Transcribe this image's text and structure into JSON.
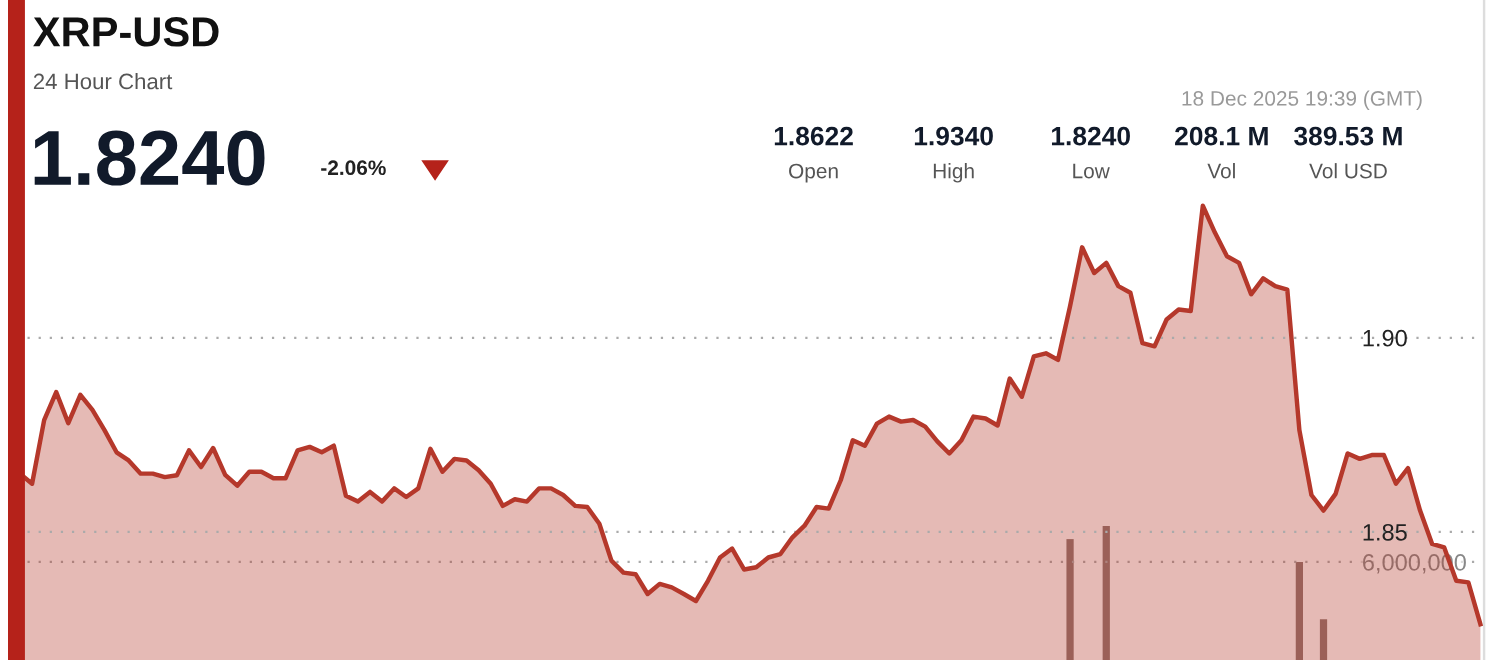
{
  "chart_data": {
    "type": "area",
    "title": "XRP-USD",
    "subtitle": "24 Hour Chart",
    "annotations": [
      "1.8240",
      "-2.06%",
      "18 Dec 2025 19:39 (GMT)",
      "1.8622",
      "Open",
      "1.9340",
      "High",
      "1.8240",
      "Low",
      "208.1 M",
      "Vol",
      "389.53 M",
      "Vol USD"
    ],
    "categories": [
      null,
      null,
      null,
      null,
      null,
      null,
      null,
      null,
      null,
      null,
      null,
      null,
      null,
      null,
      null,
      null,
      null,
      null,
      null,
      null,
      null,
      null,
      null,
      null,
      null,
      null,
      null,
      null,
      null,
      null,
      null,
      null,
      null,
      null,
      null,
      null,
      null,
      null,
      null,
      null,
      null,
      null,
      null,
      null,
      null,
      null,
      null,
      null,
      null,
      null,
      null,
      null,
      null,
      null,
      null,
      null,
      null,
      null,
      null,
      null,
      null,
      null,
      null,
      null,
      null,
      null,
      null,
      null,
      null,
      null,
      null,
      null,
      null,
      null,
      null,
      null,
      null,
      null,
      null,
      null,
      null,
      null,
      null,
      null,
      null,
      null,
      null,
      null,
      null,
      null,
      null,
      null,
      null,
      null,
      null,
      null,
      null,
      null,
      null,
      null,
      null,
      null,
      null,
      null,
      null,
      null,
      null,
      null,
      null,
      null,
      null,
      null,
      null,
      null,
      null,
      null,
      null,
      null,
      null,
      null,
      null,
      null
    ],
    "series": [
      {
        "color": "#b5382b",
        "values": [
          1.865,
          1.8624,
          1.8788,
          1.886,
          1.878,
          1.8853,
          1.8814,
          1.8762,
          1.8705,
          1.8684,
          1.865,
          1.865,
          1.8641,
          1.8646,
          1.871,
          1.8667,
          1.8716,
          1.8647,
          1.8619,
          1.8655,
          1.8655,
          1.8638,
          1.8638,
          1.871,
          1.8719,
          1.8705,
          1.8722,
          1.8593,
          1.8578,
          1.8603,
          1.8578,
          1.8612,
          1.859,
          1.8612,
          1.8714,
          1.8655,
          1.8688,
          1.8684,
          1.8659,
          1.8624,
          1.8567,
          1.8584,
          1.8578,
          1.8612,
          1.8612,
          1.8595,
          1.8567,
          1.8564,
          1.8521,
          1.8426,
          1.8395,
          1.8391,
          1.834,
          1.8366,
          1.8357,
          1.834,
          1.8322,
          1.8374,
          1.8434,
          1.8457,
          1.8403,
          1.8409,
          1.8434,
          1.8443,
          1.8486,
          1.8516,
          1.8564,
          1.856,
          1.8633,
          1.8736,
          1.8722,
          1.8779,
          1.8797,
          1.8784,
          1.8788,
          1.8771,
          1.8733,
          1.8702,
          1.8736,
          1.8797,
          1.8792,
          1.8774,
          1.8895,
          1.8848,
          1.8952,
          1.896,
          1.8943,
          1.9081,
          1.9233,
          1.9167,
          1.9193,
          1.9133,
          1.9116,
          1.8986,
          1.8978,
          1.9047,
          1.9073,
          1.9069,
          1.934,
          1.9271,
          1.921,
          1.9193,
          1.9112,
          1.9153,
          1.9133,
          1.9124,
          1.8762,
          1.8595,
          1.8555,
          1.8598,
          1.8702,
          1.8688,
          1.8698,
          1.8698,
          1.8624,
          1.8664,
          1.8555,
          1.8469,
          1.846,
          1.8374,
          1.837,
          1.8262
        ]
      },
      {
        "type": "bar",
        "axis": "y2",
        "color": "#8e7671",
        "values": [
          null,
          null,
          null,
          null,
          null,
          null,
          null,
          null,
          null,
          null,
          null,
          null,
          null,
          null,
          null,
          null,
          null,
          null,
          null,
          null,
          null,
          null,
          null,
          null,
          null,
          null,
          null,
          null,
          null,
          null,
          null,
          null,
          null,
          null,
          null,
          null,
          null,
          null,
          null,
          null,
          null,
          null,
          null,
          null,
          null,
          null,
          null,
          null,
          null,
          null,
          null,
          null,
          null,
          null,
          null,
          null,
          null,
          null,
          null,
          null,
          null,
          null,
          null,
          null,
          null,
          null,
          null,
          null,
          null,
          null,
          null,
          null,
          null,
          null,
          null,
          null,
          null,
          null,
          null,
          null,
          null,
          null,
          null,
          null,
          null,
          null,
          null,
          7400000,
          null,
          null,
          8200000,
          null,
          null,
          null,
          null,
          null,
          null,
          null,
          null,
          null,
          null,
          null,
          null,
          null,
          null,
          null,
          6000000,
          null,
          2500000,
          null,
          null,
          null,
          null,
          null,
          null,
          null,
          null,
          null,
          null,
          null,
          null,
          null
        ]
      }
    ],
    "ylim": [
      1.817,
      1.987
    ],
    "yticks": [
      {
        "value": 1.85,
        "label": "1.85"
      },
      {
        "value": 1.9,
        "label": "1.90"
      }
    ],
    "y2lim": [
      0,
      40400000
    ],
    "y2ticks": [
      {
        "value": 6000000,
        "label": "6,000,000"
      }
    ],
    "grid": "y",
    "tick_labels": "y",
    "legend": false
  }
}
